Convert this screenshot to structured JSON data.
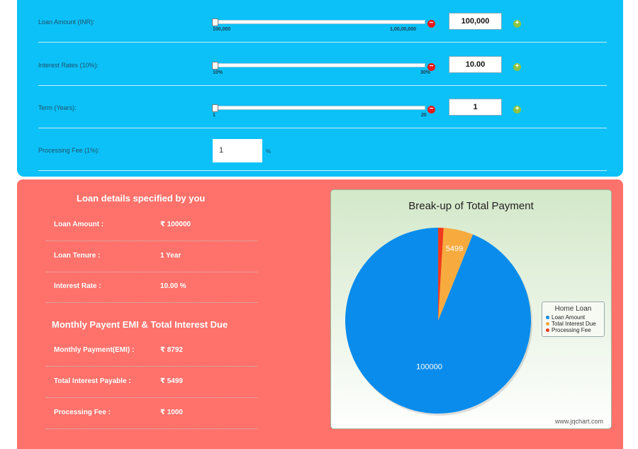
{
  "inputs": {
    "loan_amount": {
      "label": "Loan Amount (INR):",
      "value": "100,000",
      "min_label": "100,000",
      "max_label": "1,00,00,000"
    },
    "interest_rate": {
      "label": "Interest Rates (10%):",
      "value": "10.00",
      "min_label": "10%",
      "max_label": "30%"
    },
    "term": {
      "label": "Term (Years):",
      "value": "1",
      "min_label": "1",
      "max_label": "20"
    },
    "processing_fee": {
      "label": "Processing Fee (1%):",
      "value": "1",
      "unit": "%"
    }
  },
  "buttons": {
    "minus": "−",
    "plus": "+"
  },
  "details": {
    "title": "Loan details specified by you",
    "loan_amount_label": "Loan Amount :",
    "loan_amount_value": "₹ 100000",
    "tenure_label": "Loan Tenure :",
    "tenure_value": "1 Year",
    "interest_label": "Interest Rate :",
    "interest_value": "10.00 %"
  },
  "emi": {
    "title": "Monthly Payent EMI & Total Interest Due",
    "monthly_label": "Monthly Payment(EMI) :",
    "monthly_value": "₹ 8792",
    "interest_label": "Total Interest Payable :",
    "interest_value": "₹ 5499",
    "fee_label": "Processing Fee :",
    "fee_value": "₹ 1000"
  },
  "chart_data": {
    "type": "pie",
    "title": "Break-up of Total Payment",
    "legend_title": "Home Loan",
    "legend_position": "right",
    "slices": [
      {
        "label": "Loan Amount",
        "value": 100000,
        "color": "#0a8cec",
        "data_label": "100000"
      },
      {
        "label": "Total Interest Due",
        "value": 5499,
        "color": "#f7ab3e",
        "data_label": "5499"
      },
      {
        "label": "Processing Fee",
        "value": 1000,
        "color": "#f0391b",
        "data_label": ""
      }
    ],
    "credit": "www.jqchart.com"
  }
}
